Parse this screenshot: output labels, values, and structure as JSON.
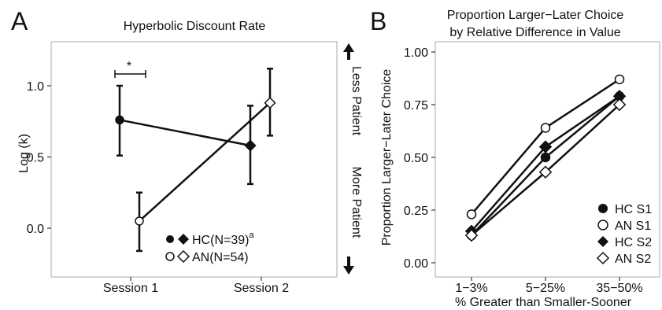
{
  "chart_data": [
    {
      "panel_letter": "A",
      "type": "dot-errorbar",
      "title": "Hyperbolic Discount Rate",
      "ylabel": "Log (k)",
      "xlabel": "",
      "categories": [
        "Session 1",
        "Session 2"
      ],
      "ylim": [
        -0.16,
        1.32
      ],
      "yticks": [
        "0.0",
        "0.5",
        "1.0"
      ],
      "right_annotations": {
        "top": "Less Patient",
        "bottom": "More Patient"
      },
      "significance_marker": "*",
      "series": [
        {
          "name": "HC(N=39)",
          "name_superscript": "a",
          "markers": [
            "filled-circle",
            "filled-diamond"
          ],
          "values": [
            0.76,
            0.58
          ],
          "error_low": [
            0.51,
            0.31
          ],
          "error_high": [
            1.0,
            0.86
          ]
        },
        {
          "name": "AN(N=54)",
          "markers": [
            "open-circle",
            "open-diamond"
          ],
          "values": [
            0.05,
            0.88
          ],
          "error_low": [
            -0.16,
            0.65
          ],
          "error_high": [
            0.25,
            1.12
          ]
        }
      ]
    },
    {
      "panel_letter": "B",
      "type": "line",
      "title": "Proportion Larger−Later Choice",
      "subtitle": "by Relative Difference in Value",
      "ylabel": "Proportion Larger−Later Choice",
      "xlabel": "% Greater than Smaller-Sooner",
      "categories": [
        "1−3%",
        "5−25%",
        "35−50%"
      ],
      "ylim": [
        -0.02,
        1.02
      ],
      "yticks": [
        "0.00",
        "0.25",
        "0.50",
        "0.75",
        "1.00"
      ],
      "legend_position": "bottom-right",
      "series": [
        {
          "name": "HC S1",
          "marker": "filled-circle",
          "values": [
            0.13,
            0.5,
            0.79
          ]
        },
        {
          "name": "AN S1",
          "marker": "open-circle",
          "values": [
            0.23,
            0.64,
            0.87
          ]
        },
        {
          "name": "HC S2",
          "marker": "filled-diamond",
          "values": [
            0.15,
            0.55,
            0.79
          ]
        },
        {
          "name": "AN S2",
          "marker": "open-diamond",
          "values": [
            0.13,
            0.43,
            0.75
          ]
        }
      ]
    }
  ]
}
